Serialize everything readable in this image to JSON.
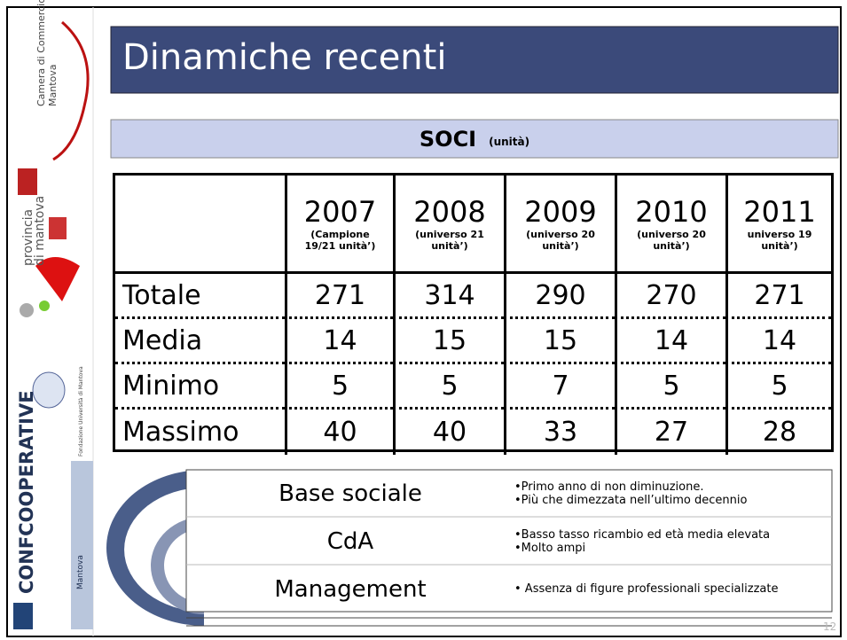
{
  "sidebar": {
    "camera": [
      "Camera di Commercio",
      "Mantova"
    ],
    "provincia": [
      "provincia",
      "di mantova"
    ],
    "fondazione": "Fondazione Università di Mantova",
    "confcoop": "CONFCOOPERATIVE",
    "confcoop_city": "Mantova"
  },
  "header": {
    "title": "Dinamiche recenti",
    "subtitle": "SOCI",
    "subtitle_unit": "(unità)"
  },
  "table": {
    "columns": [
      {
        "year": "2007",
        "note": "(Campione 19/21 unità’)"
      },
      {
        "year": "2008",
        "note": "(universo 21 unità’)"
      },
      {
        "year": "2009",
        "note": "(universo 20 unità’)"
      },
      {
        "year": "2010",
        "note": "(universo 20 unità’)"
      },
      {
        "year": "2011",
        "note": "universo 19 unità’)"
      }
    ],
    "rows": [
      {
        "label": "Totale",
        "values": [
          271,
          314,
          290,
          270,
          271
        ]
      },
      {
        "label": "Media",
        "values": [
          14,
          15,
          15,
          14,
          14
        ]
      },
      {
        "label": "Minimo",
        "values": [
          5,
          5,
          7,
          5,
          5
        ]
      },
      {
        "label": "Massimo",
        "values": [
          40,
          40,
          33,
          27,
          28
        ]
      }
    ]
  },
  "notes": [
    {
      "label": "Base sociale",
      "points": [
        "•Primo anno di non diminuzione.",
        "•Più che dimezzata nell’ultimo decennio"
      ]
    },
    {
      "label": "CdA",
      "points": [
        "•Basso tasso ricambio ed età media elevata",
        "•Molto ampi"
      ]
    },
    {
      "label": "Management",
      "points": [
        "• Assenza di figure professionali specializzate"
      ]
    }
  ],
  "page_number": "12"
}
